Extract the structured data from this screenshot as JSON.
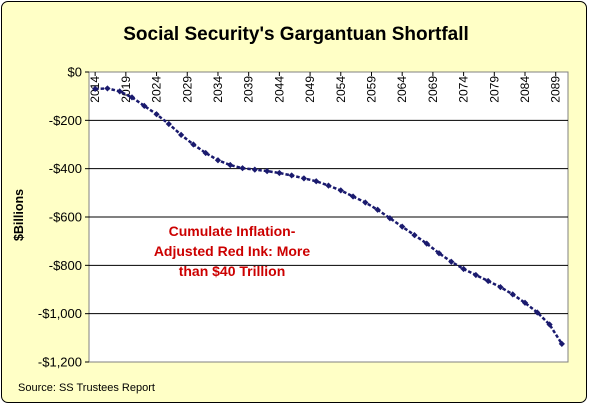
{
  "chart_data": {
    "type": "line",
    "title": "Social Security's Gargantuan Shortfall",
    "ylabel": "$Billions",
    "xlabel": "",
    "ylim": [
      -1200,
      0
    ],
    "grid": true,
    "legend": "none",
    "y_ticks": [
      "$0",
      "-$200",
      "-$400",
      "-$600",
      "-$800",
      "-$1,000",
      "-$1,200"
    ],
    "y_tick_values": [
      0,
      -200,
      -400,
      -600,
      -800,
      -1000,
      -1200
    ],
    "x_ticks": [
      2014,
      2019,
      2024,
      2029,
      2034,
      2039,
      2044,
      2049,
      2054,
      2059,
      2064,
      2069,
      2074,
      2079,
      2084,
      2089
    ],
    "x_tick_labels": [
      "2014",
      "2019",
      "2024",
      "2029",
      "2034",
      "2039",
      "2044",
      "2049",
      "2054",
      "2059",
      "2064",
      "2069",
      "2074",
      "2079",
      "2084",
      "2089"
    ],
    "xlim": [
      2013,
      2091
    ],
    "series": [
      {
        "color": "#1a1a6e",
        "x": [
          2014,
          2016,
          2018,
          2020,
          2022,
          2024,
          2026,
          2028,
          2030,
          2032,
          2034,
          2036,
          2038,
          2040,
          2042,
          2044,
          2046,
          2048,
          2050,
          2052,
          2054,
          2056,
          2058,
          2060,
          2062,
          2064,
          2066,
          2068,
          2070,
          2072,
          2074,
          2076,
          2078,
          2080,
          2082,
          2084,
          2086,
          2088,
          2090
        ],
        "values": [
          -70,
          -68,
          -80,
          -105,
          -140,
          -175,
          -215,
          -260,
          -300,
          -335,
          -365,
          -385,
          -398,
          -404,
          -410,
          -418,
          -428,
          -440,
          -452,
          -470,
          -490,
          -515,
          -540,
          -570,
          -605,
          -640,
          -675,
          -710,
          -750,
          -785,
          -815,
          -840,
          -865,
          -890,
          -920,
          -955,
          -995,
          -1045,
          -1125
        ]
      }
    ],
    "annotation": [
      "Cumulate Inflation-",
      "Adjusted Red Ink: More",
      "than $40 Trillion"
    ],
    "source": "Source: SS Trustees Report"
  },
  "colors": {
    "background": "#ffffc6",
    "plot_area": "#ffffff",
    "series": "#1a1a6e",
    "annotation": "#cc0000"
  }
}
